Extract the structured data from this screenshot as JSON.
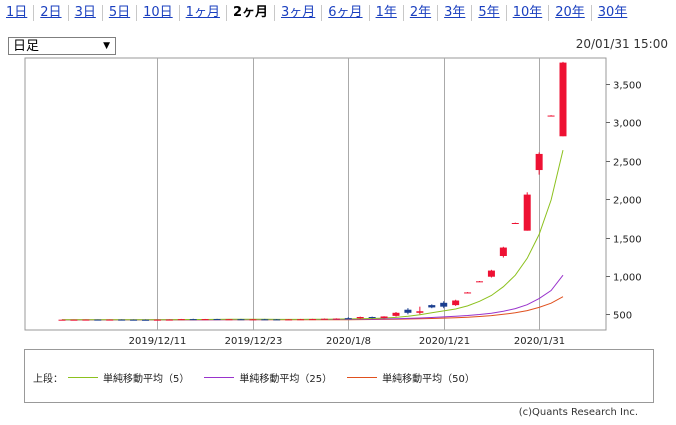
{
  "tabs": [
    {
      "label": "1日",
      "active": false
    },
    {
      "label": "2日",
      "active": false
    },
    {
      "label": "3日",
      "active": false
    },
    {
      "label": "5日",
      "active": false
    },
    {
      "label": "10日",
      "active": false
    },
    {
      "label": "1ヶ月",
      "active": false
    },
    {
      "label": "2ヶ月",
      "active": true
    },
    {
      "label": "3ヶ月",
      "active": false
    },
    {
      "label": "6ヶ月",
      "active": false
    },
    {
      "label": "1年",
      "active": false
    },
    {
      "label": "2年",
      "active": false
    },
    {
      "label": "3年",
      "active": false
    },
    {
      "label": "5年",
      "active": false
    },
    {
      "label": "10年",
      "active": false
    },
    {
      "label": "20年",
      "active": false
    },
    {
      "label": "30年",
      "active": false
    }
  ],
  "period_select": {
    "value": "日足"
  },
  "datetime": "20/01/31 15:00",
  "chart_data": {
    "type": "candlestick",
    "y_ticks": [
      500,
      1000,
      1500,
      2000,
      2500,
      3000,
      3500
    ],
    "y_tick_labels": [
      "500",
      "1,000",
      "1,500",
      "2,000",
      "2,500",
      "3,000",
      "3,500"
    ],
    "ylim": [
      400,
      3840
    ],
    "x_tick_labels": [
      "2019/12/11",
      "2019/12/23",
      "2020/1/8",
      "2020/1/21",
      "2020/1/31"
    ],
    "x_tick_index": [
      8,
      16,
      24,
      32,
      40
    ],
    "candles": [
      {
        "o": 430,
        "h": 432,
        "l": 428,
        "c": 430
      },
      {
        "o": 430,
        "h": 432,
        "l": 428,
        "c": 430
      },
      {
        "o": 430,
        "h": 433,
        "l": 428,
        "c": 431
      },
      {
        "o": 431,
        "h": 433,
        "l": 428,
        "c": 430
      },
      {
        "o": 430,
        "h": 433,
        "l": 428,
        "c": 431
      },
      {
        "o": 431,
        "h": 434,
        "l": 428,
        "c": 430
      },
      {
        "o": 430,
        "h": 433,
        "l": 427,
        "c": 429
      },
      {
        "o": 429,
        "h": 432,
        "l": 426,
        "c": 428
      },
      {
        "o": 428,
        "h": 433,
        "l": 426,
        "c": 430
      },
      {
        "o": 430,
        "h": 434,
        "l": 427,
        "c": 431
      },
      {
        "o": 431,
        "h": 440,
        "l": 429,
        "c": 437
      },
      {
        "o": 437,
        "h": 442,
        "l": 432,
        "c": 434
      },
      {
        "o": 434,
        "h": 440,
        "l": 430,
        "c": 438
      },
      {
        "o": 438,
        "h": 441,
        "l": 431,
        "c": 433
      },
      {
        "o": 433,
        "h": 438,
        "l": 430,
        "c": 436
      },
      {
        "o": 436,
        "h": 440,
        "l": 431,
        "c": 433
      },
      {
        "o": 433,
        "h": 438,
        "l": 429,
        "c": 435
      },
      {
        "o": 435,
        "h": 440,
        "l": 431,
        "c": 434
      },
      {
        "o": 434,
        "h": 438,
        "l": 429,
        "c": 432
      },
      {
        "o": 432,
        "h": 437,
        "l": 428,
        "c": 434
      },
      {
        "o": 434,
        "h": 440,
        "l": 430,
        "c": 436
      },
      {
        "o": 436,
        "h": 441,
        "l": 432,
        "c": 438
      },
      {
        "o": 438,
        "h": 446,
        "l": 434,
        "c": 442
      },
      {
        "o": 442,
        "h": 448,
        "l": 436,
        "c": 444
      },
      {
        "o": 450,
        "h": 462,
        "l": 440,
        "c": 448
      },
      {
        "o": 448,
        "h": 470,
        "l": 442,
        "c": 465
      },
      {
        "o": 465,
        "h": 470,
        "l": 448,
        "c": 452
      },
      {
        "o": 452,
        "h": 475,
        "l": 448,
        "c": 472
      },
      {
        "o": 480,
        "h": 530,
        "l": 470,
        "c": 520
      },
      {
        "o": 560,
        "h": 580,
        "l": 500,
        "c": 520
      },
      {
        "o": 520,
        "h": 600,
        "l": 500,
        "c": 540
      },
      {
        "o": 620,
        "h": 630,
        "l": 580,
        "c": 590
      },
      {
        "o": 650,
        "h": 670,
        "l": 580,
        "c": 600
      },
      {
        "o": 620,
        "h": 690,
        "l": 610,
        "c": 680
      },
      {
        "o": 780,
        "h": 790,
        "l": 775,
        "c": 785
      },
      {
        "o": 930,
        "h": 935,
        "l": 925,
        "c": 930
      },
      {
        "o": 990,
        "h": 1080,
        "l": 980,
        "c": 1070
      },
      {
        "o": 1260,
        "h": 1380,
        "l": 1240,
        "c": 1370
      },
      {
        "o": 1690,
        "h": 1695,
        "l": 1685,
        "c": 1690
      },
      {
        "o": 1590,
        "h": 2090,
        "l": 1590,
        "c": 2060
      },
      {
        "o": 2380,
        "h": 2610,
        "l": 2320,
        "c": 2590
      },
      {
        "o": 3090,
        "h": 3095,
        "l": 3085,
        "c": 3090
      },
      {
        "o": 2820,
        "h": 3790,
        "l": 2820,
        "c": 3780
      }
    ],
    "ma5": [
      430,
      430,
      430,
      430,
      430,
      430,
      430,
      430,
      430,
      430,
      431,
      432,
      433,
      434,
      435,
      435,
      435,
      435,
      434,
      434,
      434,
      435,
      436,
      438,
      440,
      442,
      446,
      452,
      460,
      475,
      495,
      520,
      545,
      570,
      610,
      670,
      745,
      860,
      1010,
      1230,
      1540,
      1990,
      2640
    ],
    "ma25": [
      428,
      428,
      428,
      428,
      428,
      428,
      428,
      428,
      429,
      429,
      429,
      430,
      430,
      430,
      431,
      431,
      431,
      431,
      432,
      432,
      432,
      432,
      432,
      433,
      434,
      435,
      437,
      440,
      443,
      447,
      452,
      458,
      466,
      475,
      485,
      498,
      515,
      540,
      575,
      625,
      705,
      810,
      1010
    ],
    "ma50": [
      428,
      428,
      428,
      428,
      428,
      428,
      428,
      428,
      428,
      428,
      428,
      428,
      428,
      429,
      429,
      429,
      429,
      429,
      429,
      429,
      430,
      430,
      430,
      430,
      430,
      431,
      432,
      434,
      436,
      439,
      442,
      446,
      451,
      456,
      463,
      472,
      484,
      500,
      520,
      548,
      590,
      645,
      730
    ]
  },
  "legend": {
    "heading": "上段：",
    "items": [
      {
        "name": "単純移動平均（5）",
        "color": "#8cc11e"
      },
      {
        "name": "単純移動平均（25）",
        "color": "#9933cc"
      },
      {
        "name": "単純移動平均（50）",
        "color": "#e0501e"
      }
    ]
  },
  "copyright": "(c)Quants Research Inc.",
  "colors": {
    "up": "#ee1133",
    "down": "#1a3e8f",
    "grid": "#c8c8c8",
    "frame": "#999999"
  }
}
